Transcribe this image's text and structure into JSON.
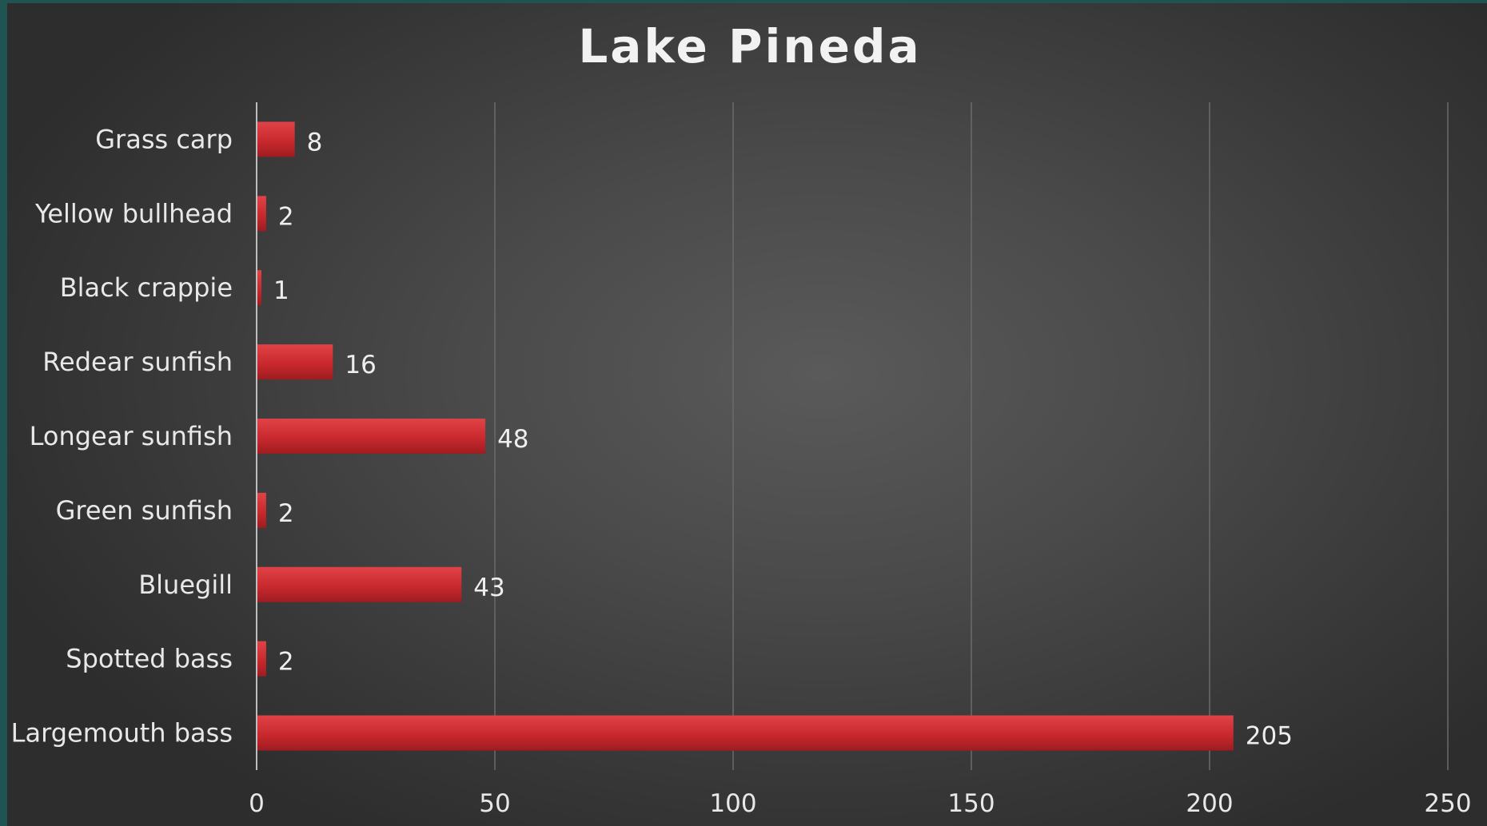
{
  "colors": {
    "background": "#1f5452",
    "plot_background": "#4a4a4a",
    "bar": "#c62a2e",
    "bar_highlight": "#e04347",
    "text": "#e8e8e8",
    "gridline": "#6a6a6a"
  },
  "chart_data": {
    "type": "bar",
    "orientation": "horizontal",
    "title": "Lake Pineda",
    "xlabel": "",
    "ylabel": "",
    "categories": [
      "Largemouth bass",
      "Spotted bass",
      "Bluegill",
      "Green sunfish",
      "Longear sunfish",
      "Redear sunfish",
      "Black crappie",
      "Yellow bullhead",
      "Grass carp"
    ],
    "values": [
      205,
      2,
      43,
      2,
      48,
      16,
      1,
      2,
      8
    ],
    "xlim": [
      0,
      250
    ],
    "xticks": [
      0,
      50,
      100,
      150,
      200,
      250
    ],
    "grid": "vertical",
    "legend": "none",
    "data_labels": true
  }
}
